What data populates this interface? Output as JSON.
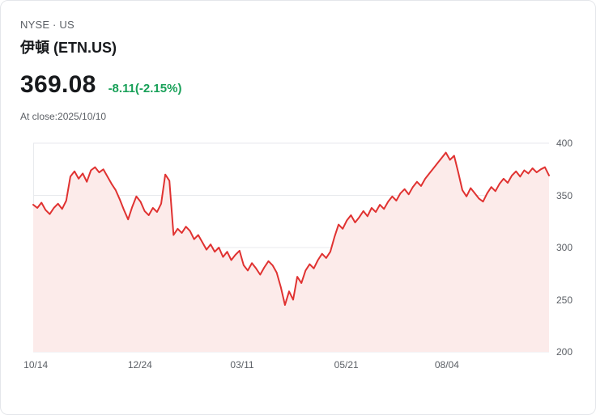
{
  "header": {
    "exchange": "NYSE · US",
    "title": "伊頓 (ETN.US)"
  },
  "quote": {
    "price": "369.08",
    "change": "-8.11(-2.15%)",
    "as_of": "At close:2025/10/10"
  },
  "colors": {
    "line": "#e03231",
    "fill": "#fcebea",
    "change_green": "#18a058",
    "grid": "#e8eaed",
    "axis_text": "#5c6066"
  },
  "chart_data": {
    "type": "area",
    "title": "ETN.US price history, 2024/10/14 - 2025/10/10",
    "ylim": [
      200,
      400
    ],
    "y_ticks": [
      400,
      350,
      300,
      250,
      200
    ],
    "x_ticks": [
      {
        "label": "10/14",
        "pos": 0.005
      },
      {
        "label": "12/24",
        "pos": 0.207
      },
      {
        "label": "03/11",
        "pos": 0.405
      },
      {
        "label": "05/21",
        "pos": 0.607
      },
      {
        "label": "08/04",
        "pos": 0.802
      }
    ],
    "grid": true,
    "legend": false,
    "values": [
      341,
      338,
      343,
      336,
      332,
      338,
      342,
      337,
      345,
      368,
      373,
      366,
      371,
      363,
      374,
      377,
      372,
      375,
      368,
      361,
      355,
      346,
      336,
      327,
      339,
      349,
      344,
      335,
      331,
      338,
      334,
      342,
      370,
      364,
      312,
      318,
      314,
      320,
      316,
      308,
      312,
      305,
      298,
      303,
      296,
      300,
      291,
      296,
      288,
      293,
      297,
      283,
      278,
      285,
      280,
      274,
      281,
      287,
      283,
      276,
      262,
      245,
      258,
      250,
      272,
      266,
      278,
      284,
      280,
      288,
      294,
      290,
      296,
      310,
      322,
      318,
      326,
      331,
      324,
      329,
      335,
      330,
      338,
      334,
      341,
      337,
      344,
      349,
      345,
      352,
      356,
      351,
      358,
      363,
      359,
      366,
      371,
      376,
      381,
      386,
      391,
      384,
      388,
      372,
      355,
      349,
      357,
      352,
      347,
      344,
      352,
      358,
      354,
      361,
      366,
      362,
      369,
      373,
      368,
      374,
      371,
      376,
      372,
      375,
      377,
      369.08
    ]
  }
}
